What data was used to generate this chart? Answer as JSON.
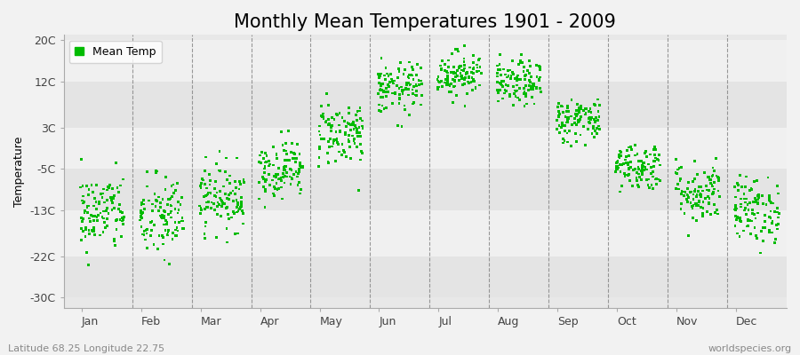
{
  "title": "Monthly Mean Temperatures 1901 - 2009",
  "ylabel": "Temperature",
  "xlabel_bottom_left": "Latitude 68.25 Longitude 22.75",
  "xlabel_bottom_right": "worldspecies.org",
  "legend_label": "Mean Temp",
  "yticks": [
    -30,
    -22,
    -13,
    -5,
    3,
    12,
    20
  ],
  "ytick_labels": [
    "-30C",
    "-22C",
    "-13C",
    "-5C",
    "3C",
    "12C",
    "20C"
  ],
  "ylim": [
    -32,
    21
  ],
  "months": [
    "Jan",
    "Feb",
    "Mar",
    "Apr",
    "May",
    "Jun",
    "Jul",
    "Aug",
    "Sep",
    "Oct",
    "Nov",
    "Dec"
  ],
  "dot_color": "#00BB00",
  "background_color": "#f2f2f2",
  "plot_bg_color": "#e8e8e8",
  "band_light": "#f0f0f0",
  "band_dark": "#e4e4e4",
  "title_fontsize": 15,
  "label_fontsize": 9,
  "tick_fontsize": 9,
  "n_years": 109,
  "mean_temps": [
    -13.5,
    -14.5,
    -10.5,
    -5.0,
    2.0,
    10.5,
    13.5,
    11.5,
    4.5,
    -4.5,
    -9.5,
    -13.0
  ],
  "std_temps": [
    3.8,
    4.2,
    3.2,
    2.8,
    3.2,
    2.5,
    2.2,
    2.2,
    2.2,
    2.3,
    3.0,
    3.2
  ],
  "seed": 42
}
